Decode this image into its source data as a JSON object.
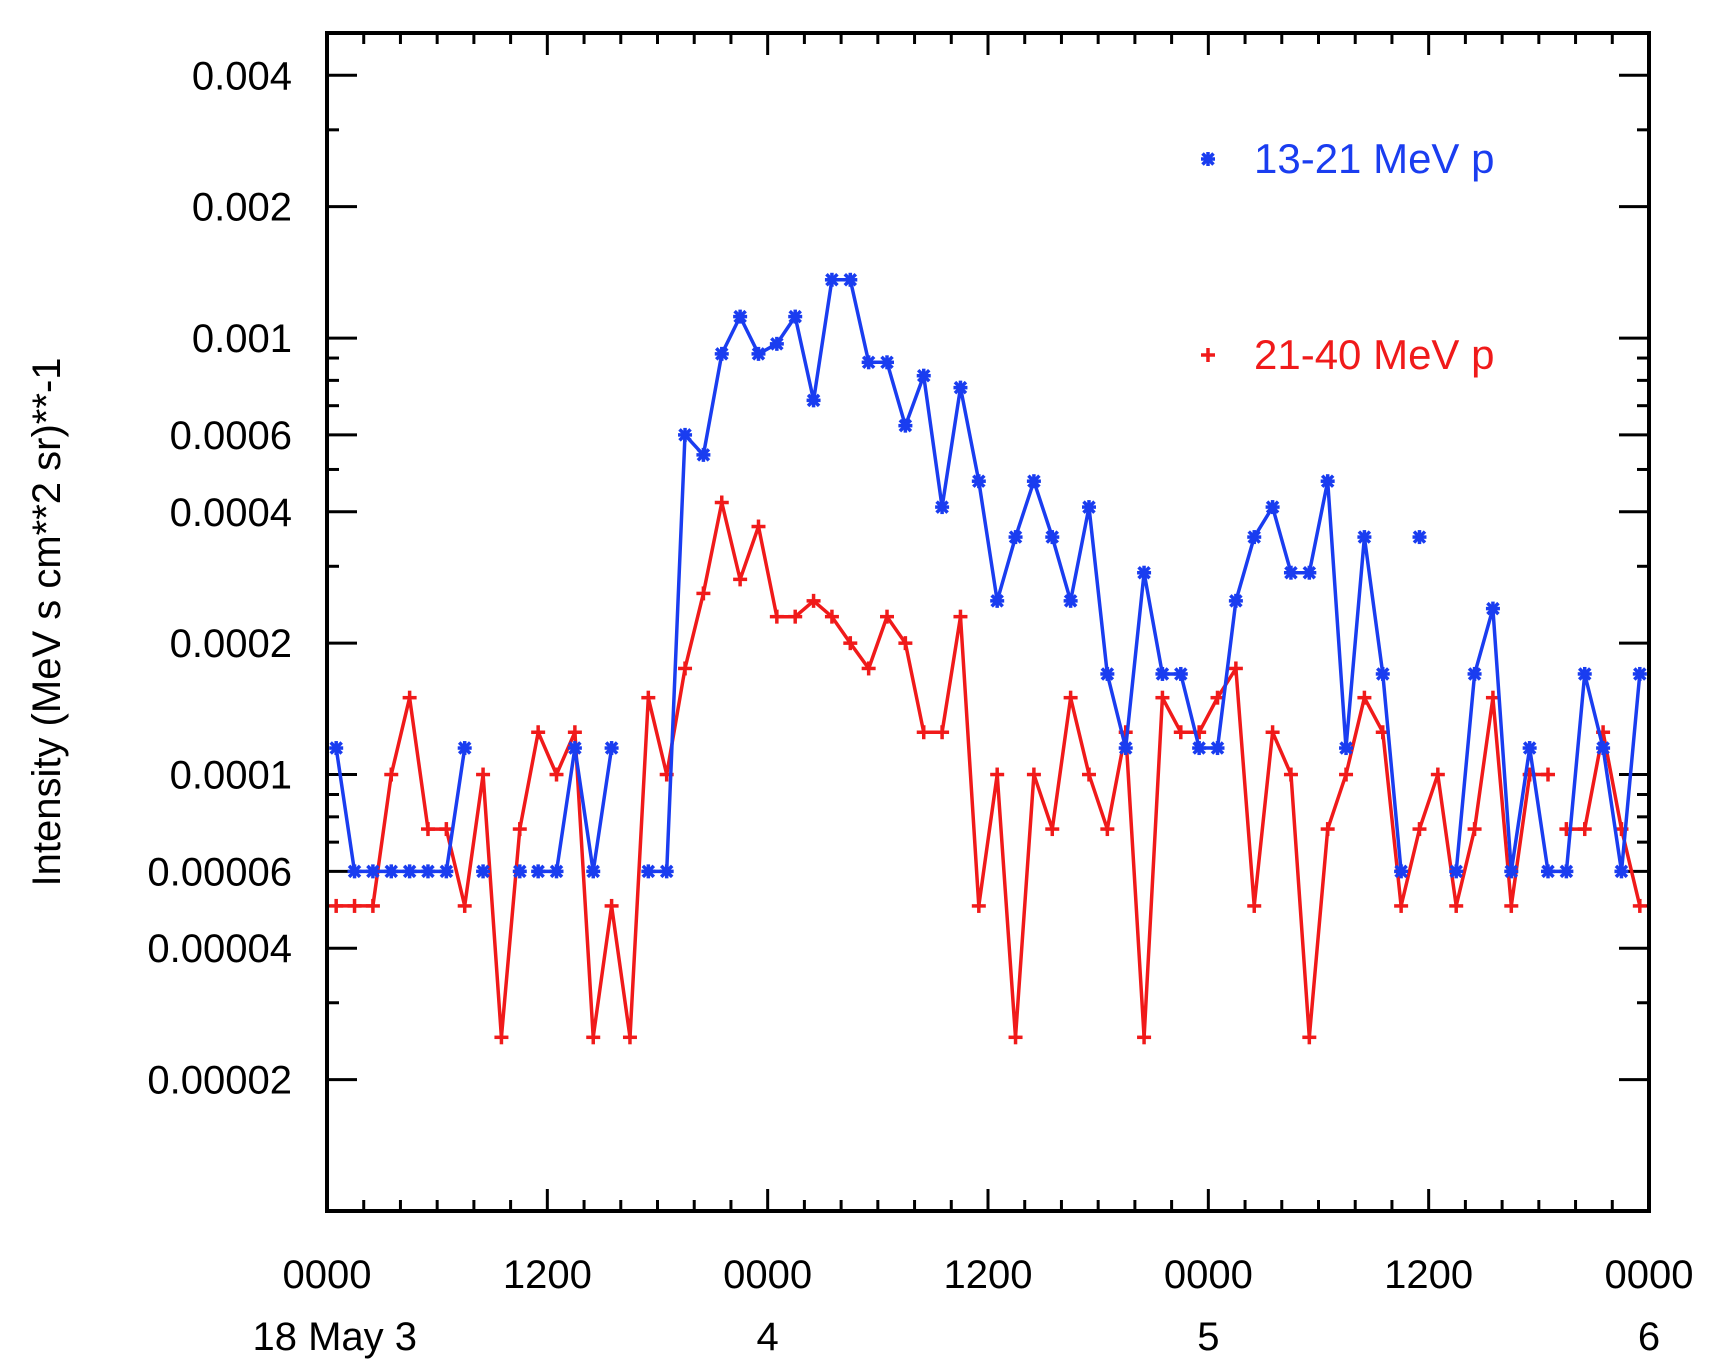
{
  "chart_data": {
    "type": "line",
    "title": "",
    "xlabel": "",
    "ylabel": "Intensity (MeV s cm**2 sr)**-1",
    "yscale": "log",
    "ylim": [
      1e-05,
      0.005
    ],
    "xlim_hours": [
      0,
      72
    ],
    "x_major_ticks": [
      {
        "hour": 0,
        "time": "0000",
        "date": "18 May  3"
      },
      {
        "hour": 12,
        "time": "1200",
        "date": ""
      },
      {
        "hour": 24,
        "time": "0000",
        "date": "4"
      },
      {
        "hour": 36,
        "time": "1200",
        "date": ""
      },
      {
        "hour": 48,
        "time": "0000",
        "date": "5"
      },
      {
        "hour": 60,
        "time": "1200",
        "date": ""
      },
      {
        "hour": 72,
        "time": "0000",
        "date": "6"
      }
    ],
    "y_ticks": [
      {
        "value": 0.004,
        "label": "0.004"
      },
      {
        "value": 0.002,
        "label": "0.002"
      },
      {
        "value": 0.001,
        "label": "0.001"
      },
      {
        "value": 0.0006,
        "label": "0.0006"
      },
      {
        "value": 0.0004,
        "label": "0.0004"
      },
      {
        "value": 0.0002,
        "label": "0.0002"
      },
      {
        "value": 0.0001,
        "label": "0.0001"
      },
      {
        "value": 6e-05,
        "label": "0.00006"
      },
      {
        "value": 4e-05,
        "label": "0.00004"
      },
      {
        "value": 2e-05,
        "label": "0.00002"
      }
    ],
    "series": [
      {
        "name": "13-21 MeV p",
        "color": "#1a3df0",
        "marker": "asterisk",
        "segments": [
          [
            [
              0.5,
              0.000115
            ],
            [
              1.5,
              6e-05
            ],
            [
              2.5,
              6e-05
            ],
            [
              3.5,
              6e-05
            ],
            [
              4.5,
              6e-05
            ],
            [
              5.5,
              6e-05
            ],
            [
              6.5,
              6e-05
            ],
            [
              7.5,
              0.000115
            ]
          ],
          [
            [
              8.5,
              6e-05
            ]
          ],
          [
            [
              10.5,
              6e-05
            ]
          ],
          [
            [
              11.5,
              6e-05
            ],
            [
              12.5,
              6e-05
            ],
            [
              13.5,
              0.000115
            ],
            [
              14.5,
              6e-05
            ],
            [
              15.5,
              0.000115
            ]
          ],
          [
            [
              17.5,
              6e-05
            ],
            [
              18.5,
              6e-05
            ],
            [
              19.5,
              0.0006
            ],
            [
              20.5,
              0.00054
            ],
            [
              21.5,
              0.00092
            ],
            [
              22.5,
              0.00112
            ],
            [
              23.5,
              0.00092
            ],
            [
              24.5,
              0.00097
            ],
            [
              25.5,
              0.00112
            ],
            [
              26.5,
              0.00072
            ],
            [
              27.5,
              0.00136
            ],
            [
              28.5,
              0.00136
            ],
            [
              29.5,
              0.00088
            ],
            [
              30.5,
              0.00088
            ],
            [
              31.5,
              0.00063
            ],
            [
              32.5,
              0.00082
            ],
            [
              33.5,
              0.00041
            ],
            [
              34.5,
              0.00077
            ],
            [
              35.5,
              0.00047
            ],
            [
              36.5,
              0.00025
            ],
            [
              37.5,
              0.00035
            ],
            [
              38.5,
              0.00047
            ],
            [
              39.5,
              0.00035
            ],
            [
              40.5,
              0.00025
            ],
            [
              41.5,
              0.00041
            ],
            [
              42.5,
              0.00017
            ],
            [
              43.5,
              0.000115
            ],
            [
              44.5,
              0.00029
            ],
            [
              45.5,
              0.00017
            ],
            [
              46.5,
              0.00017
            ],
            [
              47.5,
              0.000115
            ],
            [
              48.5,
              0.000115
            ],
            [
              49.5,
              0.00025
            ],
            [
              50.5,
              0.00035
            ],
            [
              51.5,
              0.00041
            ],
            [
              52.5,
              0.00029
            ],
            [
              53.5,
              0.00029
            ],
            [
              54.5,
              0.00047
            ],
            [
              55.5,
              0.000115
            ],
            [
              56.5,
              0.00035
            ],
            [
              57.5,
              0.00017
            ],
            [
              58.5,
              6e-05
            ]
          ],
          [
            [
              59.5,
              0.00035
            ]
          ],
          [
            [
              61.5,
              6e-05
            ],
            [
              62.5,
              0.00017
            ],
            [
              63.5,
              0.00024
            ],
            [
              64.5,
              6e-05
            ],
            [
              65.5,
              0.000115
            ],
            [
              66.5,
              6e-05
            ],
            [
              67.5,
              6e-05
            ],
            [
              68.5,
              0.00017
            ],
            [
              69.5,
              0.000115
            ],
            [
              70.5,
              6e-05
            ],
            [
              71.5,
              0.00017
            ]
          ]
        ]
      },
      {
        "name": "21-40 MeV p",
        "color": "#f01a1a",
        "marker": "plus",
        "segments": [
          [
            [
              0.5,
              5e-05
            ],
            [
              1.5,
              5e-05
            ],
            [
              2.5,
              5e-05
            ],
            [
              3.5,
              0.0001
            ],
            [
              4.5,
              0.00015
            ],
            [
              5.5,
              7.5e-05
            ],
            [
              6.5,
              7.5e-05
            ],
            [
              7.5,
              5e-05
            ],
            [
              8.5,
              0.0001
            ],
            [
              9.5,
              2.5e-05
            ],
            [
              10.5,
              7.5e-05
            ],
            [
              11.5,
              0.000125
            ],
            [
              12.5,
              0.0001
            ],
            [
              13.5,
              0.000125
            ],
            [
              14.5,
              2.5e-05
            ],
            [
              15.5,
              5e-05
            ],
            [
              16.5,
              2.5e-05
            ],
            [
              17.5,
              0.00015
            ],
            [
              18.5,
              0.0001
            ],
            [
              19.5,
              0.000175
            ],
            [
              20.5,
              0.00026
            ],
            [
              21.5,
              0.00042
            ],
            [
              22.5,
              0.00028
            ],
            [
              23.5,
              0.00037
            ],
            [
              24.5,
              0.00023
            ],
            [
              25.5,
              0.00023
            ],
            [
              26.5,
              0.00025
            ],
            [
              27.5,
              0.00023
            ],
            [
              28.5,
              0.0002
            ],
            [
              29.5,
              0.000175
            ],
            [
              30.5,
              0.00023
            ],
            [
              31.5,
              0.0002
            ],
            [
              32.5,
              0.000125
            ],
            [
              33.5,
              0.000125
            ],
            [
              34.5,
              0.00023
            ],
            [
              35.5,
              5e-05
            ],
            [
              36.5,
              0.0001
            ],
            [
              37.5,
              2.5e-05
            ],
            [
              38.5,
              0.0001
            ],
            [
              39.5,
              7.5e-05
            ],
            [
              40.5,
              0.00015
            ],
            [
              41.5,
              0.0001
            ],
            [
              42.5,
              7.5e-05
            ],
            [
              43.5,
              0.000125
            ],
            [
              44.5,
              2.5e-05
            ],
            [
              45.5,
              0.00015
            ],
            [
              46.5,
              0.000125
            ],
            [
              47.5,
              0.000125
            ],
            [
              48.5,
              0.00015
            ],
            [
              49.5,
              0.000175
            ],
            [
              50.5,
              5e-05
            ],
            [
              51.5,
              0.000125
            ],
            [
              52.5,
              0.0001
            ],
            [
              53.5,
              2.5e-05
            ],
            [
              54.5,
              7.5e-05
            ],
            [
              55.5,
              0.0001
            ],
            [
              56.5,
              0.00015
            ],
            [
              57.5,
              0.000125
            ],
            [
              58.5,
              5e-05
            ],
            [
              59.5,
              7.5e-05
            ],
            [
              60.5,
              0.0001
            ],
            [
              61.5,
              5e-05
            ],
            [
              62.5,
              7.5e-05
            ],
            [
              63.5,
              0.00015
            ],
            [
              64.5,
              5e-05
            ],
            [
              65.5,
              0.0001
            ],
            [
              66.5,
              0.0001
            ]
          ],
          [
            [
              67.5,
              7.5e-05
            ],
            [
              68.5,
              7.5e-05
            ],
            [
              69.5,
              0.000125
            ],
            [
              70.5,
              7.5e-05
            ],
            [
              71.5,
              5e-05
            ]
          ]
        ]
      }
    ],
    "legend": {
      "placement": "top-right",
      "entries": [
        "13-21 MeV p",
        "21-40 MeV p"
      ]
    }
  }
}
